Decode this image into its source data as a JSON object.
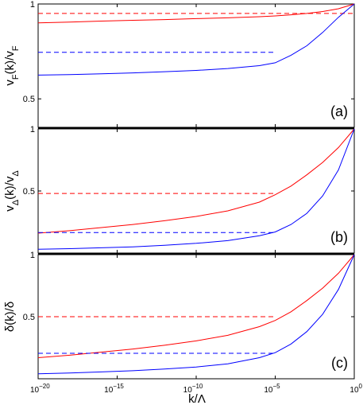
{
  "chart_data": {
    "type": "line",
    "xscale": "log",
    "xlim": [
      1e-20,
      1
    ],
    "xticks": [
      {
        "value": 1e-20,
        "base": "10",
        "exp": "−20"
      },
      {
        "value": 1e-15,
        "base": "10",
        "exp": "−15"
      },
      {
        "value": 1e-10,
        "base": "10",
        "exp": "−10"
      },
      {
        "value": 1e-05,
        "base": "10",
        "exp": "−5"
      },
      {
        "value": 1,
        "base": "10",
        "exp": "0"
      }
    ],
    "xlabel": "k/Λ",
    "colors": {
      "red": "#ff0000",
      "blue": "#0000ff"
    },
    "panels": [
      {
        "id": "a",
        "label": "(a)",
        "ylabel": {
          "main": "v",
          "sub1": "F",
          "mid": "(k)/v",
          "sub2": "F"
        },
        "ylim": [
          0.35,
          1.0
        ],
        "yticks": [
          {
            "value": 0.5,
            "label": "0.5"
          },
          {
            "value": 1.0,
            "label": "1"
          }
        ],
        "series": [
          {
            "color": "red",
            "style": "solid",
            "x": [
              1e-20,
              1e-18,
              1e-16,
              1e-14,
              1e-12,
              1e-10,
              1e-08,
              1e-06,
              1e-05,
              0.0001,
              0.001,
              0.01,
              0.1,
              1
            ],
            "y": [
              0.9,
              0.905,
              0.91,
              0.914,
              0.918,
              0.923,
              0.927,
              0.933,
              0.937,
              0.943,
              0.95,
              0.96,
              0.975,
              1.0
            ]
          },
          {
            "color": "red",
            "style": "dashed",
            "x": [
              1e-20,
              1
            ],
            "y": [
              0.95,
              0.95
            ]
          },
          {
            "color": "blue",
            "style": "solid",
            "x": [
              1e-20,
              1e-18,
              1e-16,
              1e-14,
              1e-12,
              1e-10,
              1e-08,
              1e-06,
              1e-05,
              0.0001,
              0.001,
              0.01,
              0.1,
              1
            ],
            "y": [
              0.625,
              0.628,
              0.632,
              0.637,
              0.643,
              0.65,
              0.66,
              0.675,
              0.69,
              0.73,
              0.78,
              0.85,
              0.93,
              1.0
            ]
          },
          {
            "color": "blue",
            "style": "dashed",
            "x": [
              1e-20,
              1e-05
            ],
            "y": [
              0.745,
              0.745
            ]
          }
        ]
      },
      {
        "id": "b",
        "label": "(b)",
        "ylabel": {
          "main": "v",
          "sub1": "Δ",
          "mid": "(k)/v",
          "sub2": "Δ"
        },
        "ylim": [
          0.0,
          1.0
        ],
        "yticks": [
          {
            "value": 0.5,
            "label": "0.5"
          },
          {
            "value": 1.0,
            "label": "1"
          }
        ],
        "series": [
          {
            "color": "red",
            "style": "solid",
            "x": [
              1e-20,
              1e-18,
              1e-16,
              1e-14,
              1e-12,
              1e-10,
              1e-08,
              1e-06,
              1e-05,
              0.0001,
              0.001,
              0.01,
              0.1,
              1
            ],
            "y": [
              0.16,
              0.18,
              0.205,
              0.23,
              0.26,
              0.295,
              0.34,
              0.41,
              0.47,
              0.54,
              0.63,
              0.73,
              0.85,
              1.0
            ]
          },
          {
            "color": "red",
            "style": "dashed",
            "x": [
              1e-20,
              1e-05
            ],
            "y": [
              0.48,
              0.48
            ]
          },
          {
            "color": "blue",
            "style": "solid",
            "x": [
              1e-20,
              1e-18,
              1e-16,
              1e-14,
              1e-12,
              1e-10,
              1e-08,
              1e-06,
              1e-05,
              0.0001,
              0.001,
              0.01,
              0.1,
              1
            ],
            "y": [
              0.03,
              0.035,
              0.042,
              0.05,
              0.062,
              0.078,
              0.1,
              0.14,
              0.17,
              0.23,
              0.32,
              0.46,
              0.67,
              1.0
            ]
          },
          {
            "color": "blue",
            "style": "dashed",
            "x": [
              1e-20,
              1e-05
            ],
            "y": [
              0.165,
              0.165
            ]
          }
        ]
      },
      {
        "id": "c",
        "label": "(c)",
        "ylabel": {
          "main": "δ(k)/δ",
          "sub1": "",
          "mid": "",
          "sub2": ""
        },
        "ylim": [
          0.0,
          1.0
        ],
        "yticks": [
          {
            "value": 0.5,
            "label": "0.5"
          },
          {
            "value": 1.0,
            "label": "1"
          }
        ],
        "series": [
          {
            "color": "red",
            "style": "solid",
            "x": [
              1e-20,
              1e-18,
              1e-16,
              1e-14,
              1e-12,
              1e-10,
              1e-08,
              1e-06,
              1e-05,
              0.0001,
              0.001,
              0.01,
              0.1,
              1
            ],
            "y": [
              0.17,
              0.19,
              0.215,
              0.24,
              0.27,
              0.305,
              0.35,
              0.42,
              0.47,
              0.54,
              0.63,
              0.73,
              0.85,
              1.0
            ]
          },
          {
            "color": "red",
            "style": "dashed",
            "x": [
              1e-20,
              1e-05
            ],
            "y": [
              0.5,
              0.5
            ]
          },
          {
            "color": "blue",
            "style": "solid",
            "x": [
              1e-20,
              1e-18,
              1e-16,
              1e-14,
              1e-12,
              1e-10,
              1e-08,
              1e-06,
              1e-05,
              0.0001,
              0.001,
              0.01,
              0.1,
              1
            ],
            "y": [
              0.04,
              0.047,
              0.055,
              0.065,
              0.078,
              0.095,
              0.12,
              0.17,
              0.21,
              0.28,
              0.38,
              0.52,
              0.72,
              1.0
            ]
          },
          {
            "color": "blue",
            "style": "dashed",
            "x": [
              1e-20,
              1e-05
            ],
            "y": [
              0.205,
              0.205
            ]
          }
        ]
      }
    ]
  }
}
